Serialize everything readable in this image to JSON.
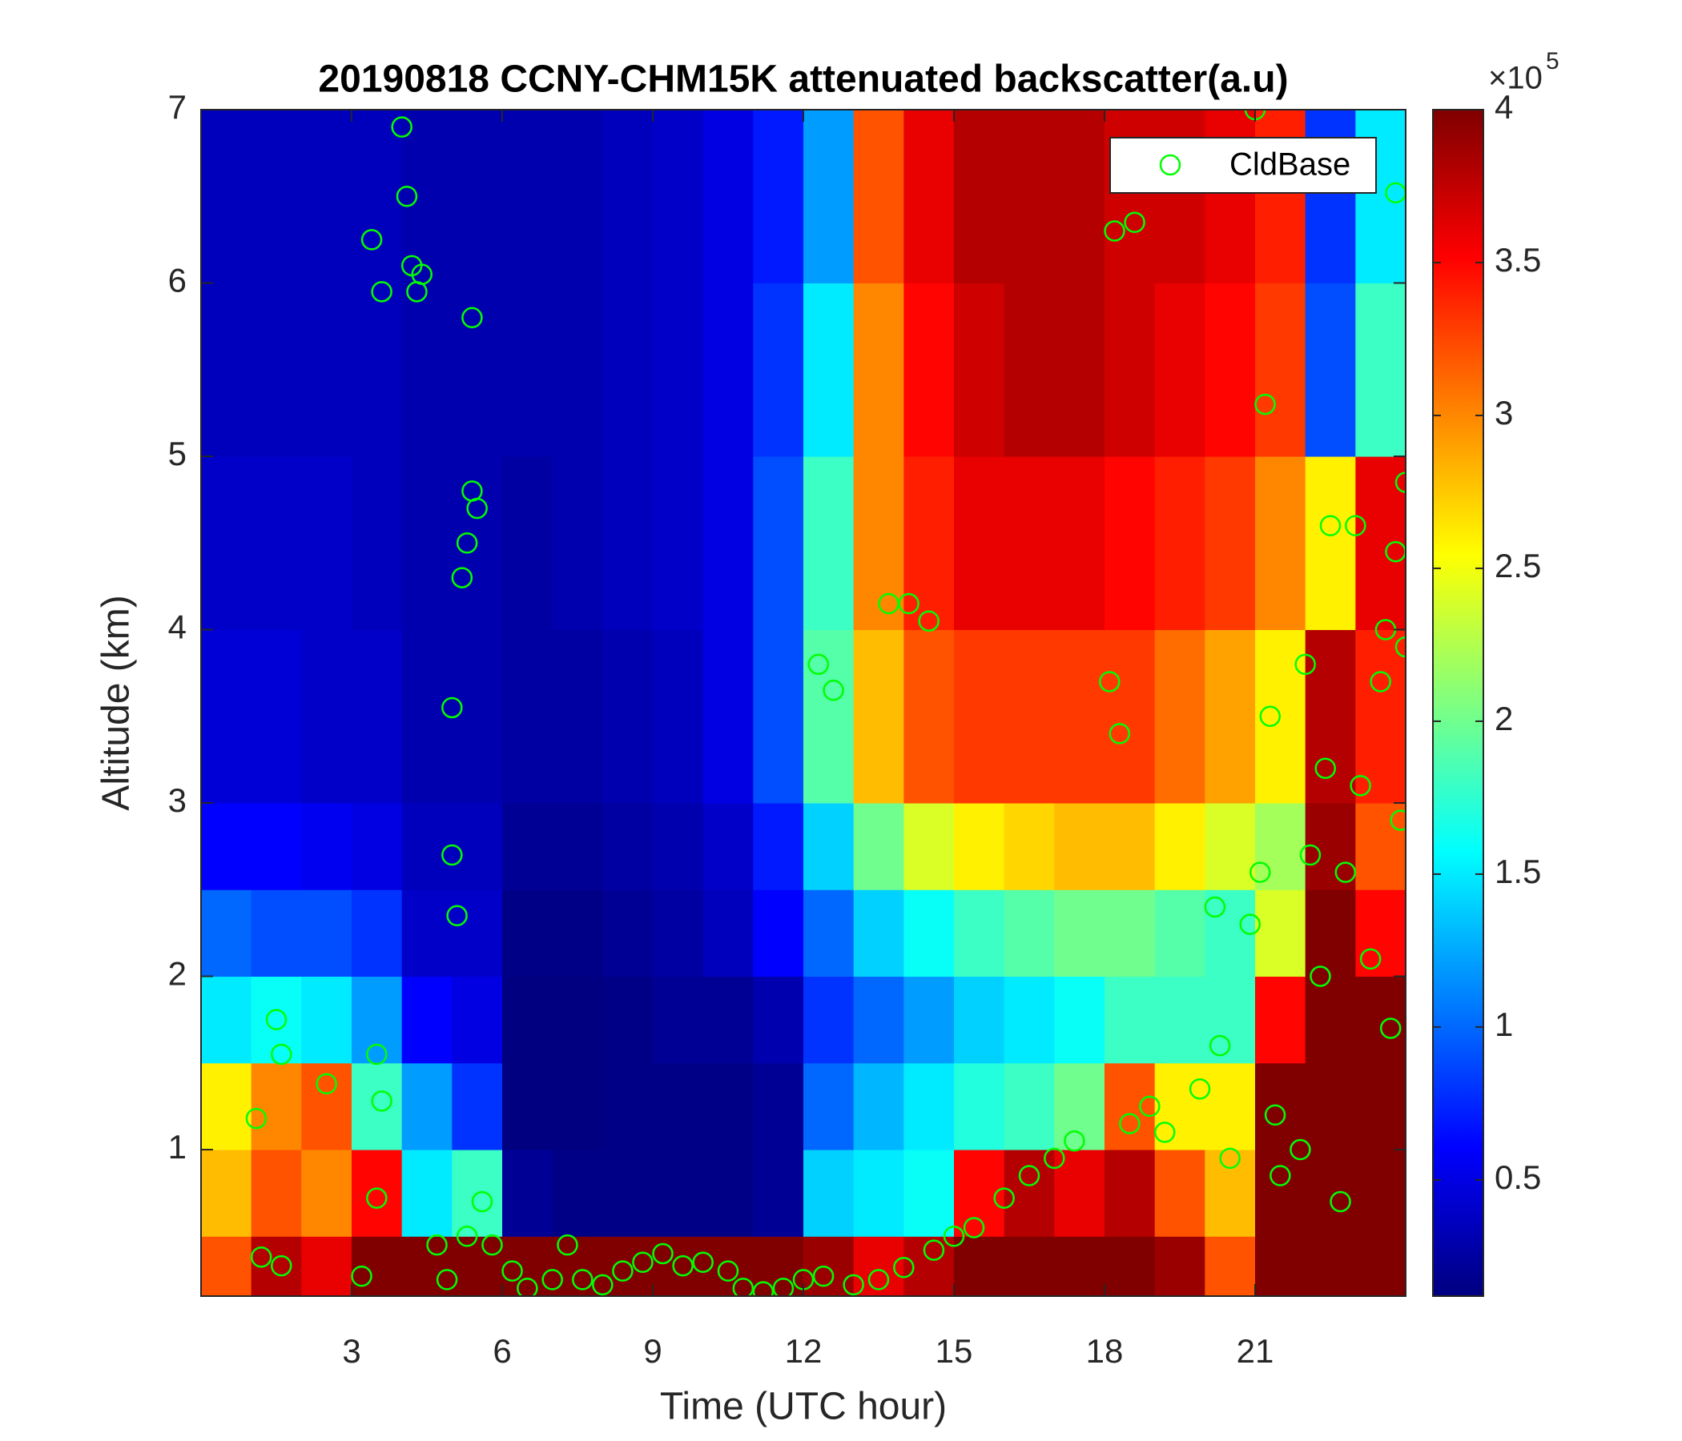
{
  "chart_data": {
    "type": "heatmap",
    "title": "20190818 CCNY-CHM15K attenuated backscatter(a.u)",
    "x_label": "Time (UTC hour)",
    "y_label": "Altitude (km)",
    "xlim": [
      0,
      24
    ],
    "xticks": [
      3,
      6,
      9,
      12,
      15,
      18,
      21
    ],
    "ylim": [
      0.155,
      7
    ],
    "yticks": [
      1,
      2,
      3,
      4,
      5,
      6,
      7
    ],
    "colormap": "jet",
    "clim": [
      0.12,
      4
    ],
    "cticks": [
      0.5,
      1,
      1.5,
      2,
      2.5,
      3,
      3.5,
      4
    ],
    "colorbar_multiplier": "×10",
    "colorbar_exponent": 5,
    "x_edges": [
      0,
      1,
      2,
      3,
      4,
      5,
      6,
      7,
      8,
      9,
      10,
      11,
      12,
      13,
      14,
      15,
      16,
      17,
      18,
      19,
      20,
      21,
      22,
      23,
      24
    ],
    "y_edges": [
      0.155,
      0.5,
      1,
      1.5,
      2,
      2.5,
      3,
      4,
      5,
      6,
      7
    ],
    "z": [
      [
        3.2,
        3.8,
        3.6,
        4,
        4,
        4,
        4,
        4,
        4,
        4,
        4,
        4,
        3.9,
        3.6,
        3.8,
        4,
        4,
        4,
        4,
        3.9,
        3.2,
        4,
        4,
        4
      ],
      [
        2.8,
        3.2,
        3.0,
        3.5,
        1.5,
        1.8,
        0.2,
        0.15,
        0.15,
        0.15,
        0.15,
        0.2,
        1.4,
        1.5,
        1.6,
        3.5,
        3.8,
        3.6,
        3.8,
        3.2,
        2.8,
        4,
        4,
        4
      ],
      [
        2.6,
        3.0,
        3.2,
        1.8,
        1.2,
        0.8,
        0.12,
        0.12,
        0.15,
        0.15,
        0.15,
        0.2,
        1.0,
        1.3,
        1.5,
        1.7,
        1.8,
        2.0,
        3.2,
        2.6,
        2.6,
        4,
        4,
        4
      ],
      [
        1.5,
        1.6,
        1.5,
        1.2,
        0.6,
        0.5,
        0.12,
        0.12,
        0.15,
        0.2,
        0.2,
        0.3,
        0.8,
        1.0,
        1.2,
        1.4,
        1.5,
        1.6,
        1.8,
        1.8,
        1.8,
        3.5,
        4,
        4
      ],
      [
        1.0,
        0.9,
        0.9,
        0.8,
        0.4,
        0.4,
        0.15,
        0.15,
        0.2,
        0.25,
        0.35,
        0.6,
        1.0,
        1.4,
        1.6,
        1.8,
        1.9,
        2.0,
        2.0,
        1.9,
        1.8,
        2.4,
        4,
        3.5
      ],
      [
        0.6,
        0.6,
        0.55,
        0.5,
        0.35,
        0.35,
        0.2,
        0.2,
        0.25,
        0.3,
        0.4,
        0.7,
        1.4,
        2.0,
        2.4,
        2.6,
        2.7,
        2.8,
        2.8,
        2.6,
        2.4,
        2.2,
        3.9,
        3.2
      ],
      [
        0.45,
        0.45,
        0.4,
        0.4,
        0.3,
        0.3,
        0.25,
        0.25,
        0.3,
        0.35,
        0.5,
        0.9,
        1.9,
        2.8,
        3.2,
        3.3,
        3.3,
        3.3,
        3.3,
        3.1,
        2.9,
        2.6,
        3.8,
        3.4
      ],
      [
        0.4,
        0.4,
        0.4,
        0.35,
        0.3,
        0.3,
        0.25,
        0.3,
        0.35,
        0.4,
        0.5,
        0.9,
        1.8,
        3.0,
        3.4,
        3.6,
        3.6,
        3.6,
        3.5,
        3.4,
        3.3,
        3.0,
        2.6,
        3.6
      ],
      [
        0.35,
        0.35,
        0.35,
        0.35,
        0.3,
        0.3,
        0.3,
        0.3,
        0.35,
        0.4,
        0.5,
        0.8,
        1.5,
        3.0,
        3.5,
        3.7,
        3.8,
        3.8,
        3.7,
        3.6,
        3.5,
        3.3,
        0.9,
        1.8
      ],
      [
        0.35,
        0.35,
        0.35,
        0.35,
        0.3,
        0.3,
        0.3,
        0.3,
        0.35,
        0.4,
        0.5,
        0.7,
        1.2,
        3.2,
        3.6,
        3.8,
        3.8,
        3.8,
        3.7,
        3.7,
        3.6,
        3.4,
        0.8,
        1.5
      ]
    ],
    "series": [
      {
        "name": "CldBase",
        "color": "#00ff00",
        "type": "scatter",
        "x": [
          1.1,
          1.2,
          1.5,
          1.6,
          1.6,
          2.5,
          3.2,
          3.5,
          3.6,
          3.5,
          3.4,
          3.6,
          4.0,
          4.1,
          4.2,
          4.3,
          4.4,
          4.7,
          4.9,
          5.0,
          5.0,
          5.1,
          5.2,
          5.3,
          5.4,
          5.5,
          5.4,
          5.3,
          5.6,
          5.8,
          6.2,
          6.5,
          7.0,
          7.3,
          7.6,
          8.0,
          8.4,
          8.8,
          9.2,
          9.6,
          10.0,
          10.5,
          10.8,
          11.2,
          11.6,
          12.0,
          12.4,
          12.3,
          12.6,
          13.0,
          13.5,
          13.7,
          14.0,
          14.1,
          14.5,
          14.6,
          15.0,
          15.4,
          16.0,
          16.5,
          17.0,
          17.4,
          18.1,
          18.3,
          18.2,
          18.6,
          18.5,
          18.9,
          19.2,
          19.9,
          20.2,
          20.3,
          20.5,
          20.9,
          21.1,
          21.2,
          21.3,
          21.0,
          21.4,
          21.5,
          21.9,
          22.0,
          22.1,
          22.3,
          22.4,
          22.5,
          22.7,
          22.8,
          23.0,
          23.1,
          23.3,
          23.5,
          23.6,
          23.8,
          23.9,
          23.8,
          24.0,
          24.0,
          23.7
        ],
        "values": [
          1.18,
          0.38,
          1.75,
          1.55,
          0.33,
          1.38,
          0.27,
          1.55,
          1.28,
          0.72,
          6.25,
          5.95,
          6.9,
          6.5,
          6.1,
          5.95,
          6.05,
          0.45,
          0.25,
          2.7,
          3.55,
          2.35,
          4.3,
          4.5,
          4.8,
          4.7,
          5.8,
          0.5,
          0.7,
          0.45,
          0.3,
          0.2,
          0.25,
          0.45,
          0.25,
          0.22,
          0.3,
          0.35,
          0.4,
          0.33,
          0.35,
          0.3,
          0.2,
          0.18,
          0.2,
          0.25,
          0.27,
          3.8,
          3.65,
          0.22,
          0.25,
          4.15,
          0.32,
          4.15,
          4.05,
          0.42,
          0.5,
          0.55,
          0.72,
          0.85,
          0.95,
          1.05,
          3.7,
          3.4,
          6.3,
          6.35,
          1.15,
          1.25,
          1.1,
          1.35,
          2.4,
          1.6,
          0.95,
          2.3,
          2.6,
          5.3,
          3.5,
          7.0,
          1.2,
          0.85,
          1.0,
          3.8,
          2.7,
          2.0,
          3.2,
          4.6,
          0.7,
          2.6,
          4.6,
          3.1,
          2.1,
          3.7,
          4.0,
          4.45,
          2.9,
          6.52,
          4.85,
          3.9,
          1.7
        ]
      }
    ],
    "legend": "upper right"
  }
}
